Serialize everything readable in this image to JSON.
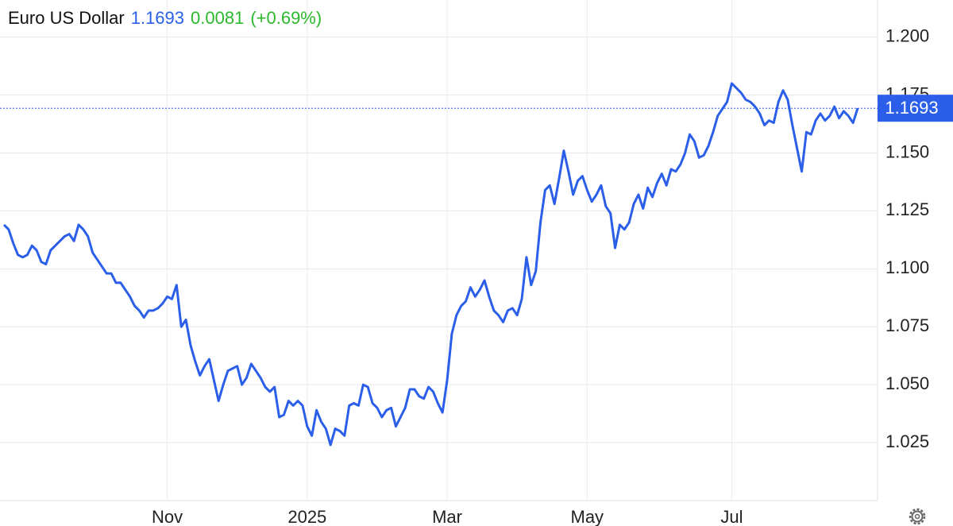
{
  "chart_data": {
    "type": "line",
    "title": "Euro US Dollar",
    "price": "1.1693",
    "change": "0.0081",
    "change_percent": "(+0.69%)",
    "color": "#2b5fe9",
    "price_color": "#2b5fe9",
    "change_color": "#2cb82c",
    "grid": true,
    "ylim": [
      1.0,
      1.216
    ],
    "yticks": [
      {
        "value": 1.025,
        "label": "1.025"
      },
      {
        "value": 1.05,
        "label": "1.050"
      },
      {
        "value": 1.075,
        "label": "1.075"
      },
      {
        "value": 1.1,
        "label": "1.100"
      },
      {
        "value": 1.125,
        "label": "1.125"
      },
      {
        "value": 1.15,
        "label": "1.150"
      },
      {
        "value": 1.175,
        "label": "1.175"
      },
      {
        "value": 1.2,
        "label": "1.200"
      }
    ],
    "categories": [
      null,
      null,
      null,
      null,
      null,
      null,
      null,
      null,
      null,
      null,
      null,
      null,
      null,
      null,
      null,
      null,
      null,
      null,
      null,
      null,
      null,
      null,
      null,
      null,
      null,
      null,
      null,
      null,
      null,
      null,
      null,
      null,
      null,
      null,
      null,
      "Nov",
      null,
      null,
      null,
      null,
      null,
      null,
      null,
      null,
      null,
      null,
      null,
      null,
      null,
      null,
      null,
      null,
      null,
      null,
      null,
      null,
      null,
      null,
      null,
      null,
      null,
      null,
      null,
      null,
      null,
      "2025",
      null,
      null,
      null,
      null,
      null,
      null,
      null,
      null,
      null,
      null,
      null,
      null,
      null,
      null,
      null,
      null,
      null,
      null,
      null,
      null,
      null,
      null,
      null,
      null,
      null,
      null,
      null,
      null,
      null,
      "Mar",
      null,
      null,
      null,
      null,
      null,
      null,
      null,
      null,
      null,
      null,
      null,
      null,
      null,
      null,
      null,
      null,
      null,
      null,
      null,
      null,
      null,
      null,
      null,
      null,
      null,
      null,
      null,
      null,
      null,
      "May",
      null,
      null,
      null,
      null,
      null,
      null,
      null,
      null,
      null,
      null,
      null,
      null,
      null,
      null,
      null,
      null,
      null,
      null,
      null,
      null,
      null,
      null,
      null,
      null,
      null,
      null,
      null,
      null,
      null,
      null,
      "Jul",
      null,
      null,
      null,
      null,
      null,
      null,
      null,
      null,
      null,
      null,
      null,
      null,
      null,
      null,
      null,
      null,
      null,
      null,
      null,
      null,
      null,
      null,
      null,
      null,
      null,
      null,
      null
    ],
    "values": [
      1.119,
      1.117,
      1.111,
      1.106,
      1.105,
      1.106,
      1.11,
      1.108,
      1.103,
      1.102,
      1.108,
      1.11,
      1.112,
      1.114,
      1.115,
      1.112,
      1.119,
      1.117,
      1.114,
      1.107,
      1.104,
      1.101,
      1.098,
      1.098,
      1.094,
      1.094,
      1.091,
      1.088,
      1.084,
      1.082,
      1.079,
      1.082,
      1.082,
      1.083,
      1.085,
      1.088,
      1.087,
      1.093,
      1.075,
      1.078,
      1.067,
      1.06,
      1.054,
      1.058,
      1.061,
      1.052,
      1.043,
      1.05,
      1.056,
      1.057,
      1.058,
      1.05,
      1.053,
      1.059,
      1.056,
      1.053,
      1.049,
      1.047,
      1.049,
      1.036,
      1.037,
      1.043,
      1.041,
      1.043,
      1.041,
      1.032,
      1.028,
      1.039,
      1.034,
      1.031,
      1.024,
      1.031,
      1.03,
      1.028,
      1.041,
      1.042,
      1.041,
      1.05,
      1.049,
      1.042,
      1.04,
      1.036,
      1.039,
      1.04,
      1.032,
      1.036,
      1.04,
      1.048,
      1.048,
      1.045,
      1.044,
      1.049,
      1.047,
      1.042,
      1.038,
      1.052,
      1.072,
      1.08,
      1.084,
      1.086,
      1.092,
      1.088,
      1.091,
      1.095,
      1.088,
      1.082,
      1.08,
      1.077,
      1.082,
      1.083,
      1.08,
      1.087,
      1.105,
      1.093,
      1.099,
      1.12,
      1.134,
      1.136,
      1.128,
      1.139,
      1.151,
      1.142,
      1.132,
      1.138,
      1.14,
      1.134,
      1.129,
      1.132,
      1.136,
      1.127,
      1.124,
      1.109,
      1.119,
      1.117,
      1.12,
      1.128,
      1.132,
      1.126,
      1.135,
      1.131,
      1.137,
      1.141,
      1.136,
      1.143,
      1.142,
      1.145,
      1.15,
      1.158,
      1.155,
      1.148,
      1.149,
      1.153,
      1.159,
      1.166,
      1.169,
      1.172,
      1.18,
      1.178,
      1.176,
      1.173,
      1.172,
      1.17,
      1.167,
      1.162,
      1.164,
      1.163,
      1.172,
      1.177,
      1.173,
      1.162,
      1.152,
      1.142,
      1.159,
      1.158,
      1.164,
      1.167,
      1.164,
      1.166,
      1.17,
      1.165,
      1.168,
      1.166,
      1.163,
      1.1693
    ]
  }
}
